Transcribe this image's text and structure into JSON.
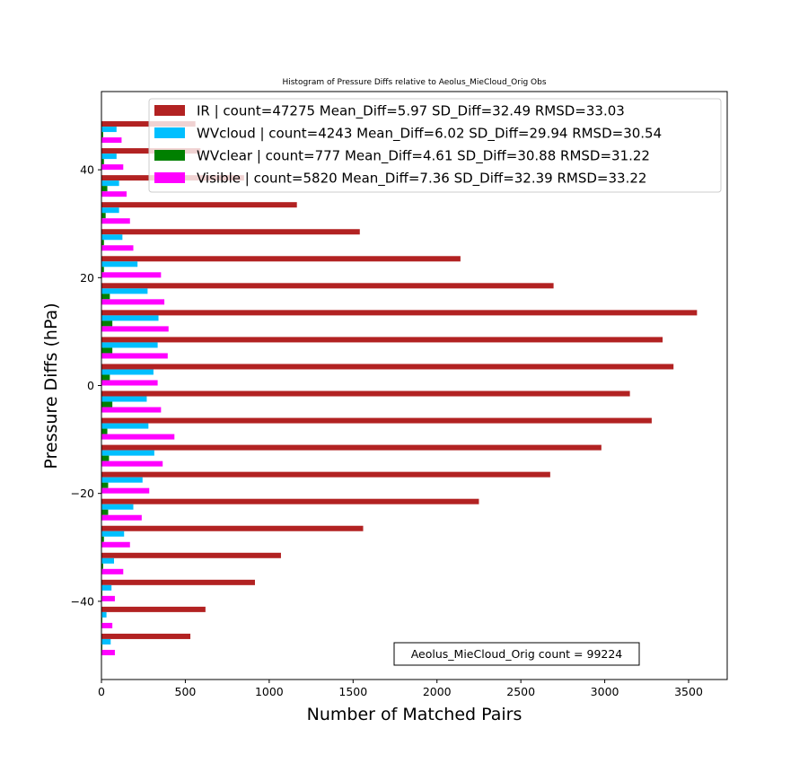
{
  "chart_data": {
    "type": "bar",
    "orientation": "horizontal",
    "title": "Histogram of Pressure Diffs relative to Aeolus_MieCloud_Orig Obs",
    "xlabel": "Number of Matched Pairs",
    "ylabel": "Pressure Diffs (hPa)",
    "xlim": [
      0,
      3730
    ],
    "ylim": [
      -54.5,
      54.5
    ],
    "xticks": [
      0,
      500,
      1000,
      1500,
      2000,
      2500,
      3000,
      3500
    ],
    "xtick_labels": [
      "0",
      "500",
      "1000",
      "1500",
      "2000",
      "2500",
      "3000",
      "3500"
    ],
    "yticks": [
      -40,
      -20,
      0,
      20,
      40
    ],
    "ytick_labels": [
      "−40",
      "−20",
      "0",
      "20",
      "40"
    ],
    "grid": false,
    "legend_position": "top-right",
    "bin_centers": [
      -48,
      -43,
      -38,
      -33,
      -28,
      -23,
      -18,
      -13,
      -8,
      -3,
      2,
      7,
      12,
      17,
      22,
      27,
      32,
      37,
      42,
      47
    ],
    "series": [
      {
        "name": "IR | count=47275 Mean_Diff=5.97 SD_Diff=32.49 RMSD=33.03",
        "color": "#b22222",
        "values": [
          530,
          620,
          915,
          1070,
          1560,
          2250,
          2675,
          2980,
          3280,
          3150,
          3410,
          3345,
          3550,
          2695,
          2140,
          1540,
          1165,
          850,
          590,
          560
        ]
      },
      {
        "name": "WVcloud | count=4243 Mean_Diff=6.02 SD_Diff=29.94 RMSD=30.54",
        "color": "#00bfff",
        "values": [
          55,
          30,
          60,
          75,
          135,
          190,
          245,
          315,
          280,
          270,
          310,
          335,
          340,
          275,
          215,
          125,
          105,
          105,
          90,
          90
        ]
      },
      {
        "name": "WVclear | count=777 Mean_Diff=4.61 SD_Diff=30.88 RMSD=31.22",
        "color": "#008000",
        "values": [
          5,
          5,
          5,
          10,
          15,
          40,
          40,
          45,
          35,
          65,
          50,
          65,
          65,
          50,
          15,
          15,
          25,
          35,
          15,
          10
        ]
      },
      {
        "name": "Visible | count=5820 Mean_Diff=7.36 SD_Diff=32.39 RMSD=33.22",
        "color": "#ff00ff",
        "values": [
          80,
          65,
          80,
          130,
          170,
          240,
          285,
          365,
          435,
          355,
          335,
          395,
          400,
          375,
          355,
          190,
          170,
          150,
          130,
          120
        ]
      }
    ],
    "annotation": "Aeolus_MieCloud_Orig count = 99224"
  }
}
